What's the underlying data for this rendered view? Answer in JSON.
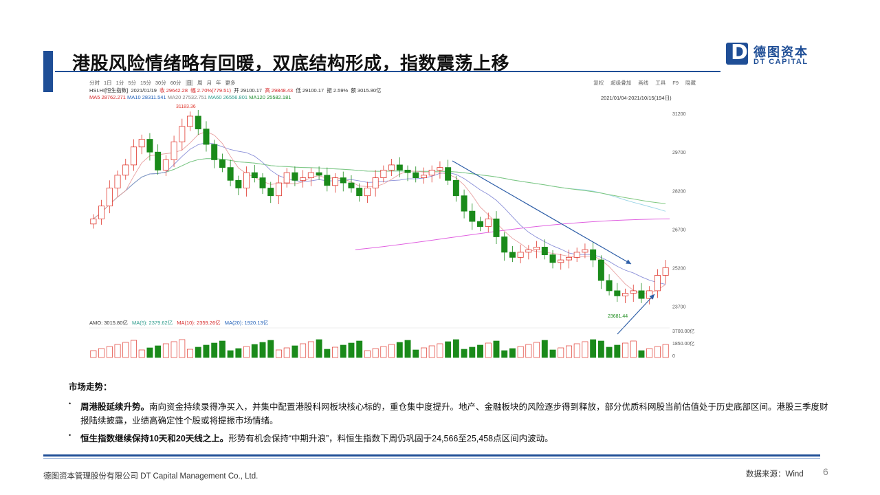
{
  "header": {
    "title": "港股风险情绪略有回暖，双底结构形成，指数震荡上移",
    "logo_cn": "德图资本",
    "logo_en": "DT CAPITAL",
    "logo_mark": "D"
  },
  "chart": {
    "toolbar_periods": [
      "分时",
      "1日",
      "1分",
      "5分",
      "15分",
      "30分",
      "60分",
      "日",
      "周",
      "月",
      "年",
      "更多"
    ],
    "selected_period": "日",
    "toolbar_right": [
      "复权",
      "超级叠加",
      "画线",
      "工具",
      "F9",
      "隐藏"
    ],
    "info_line1": {
      "code": "HSI.HI[恒生指数]",
      "date": "2021/01/19",
      "close": "收 29642.28",
      "change": "幅 2.70%(779.51)",
      "open": "开 29100.17",
      "high": "高 29848.43",
      "low": "低 29100.17",
      "amplitude": "振 2.59%",
      "volume": "额 3015.80亿"
    },
    "ma_labels": [
      {
        "label": "MA5",
        "value": "28762.271",
        "color": "#d62728"
      },
      {
        "label": "MA10",
        "value": "28311.541",
        "color": "#1f5fb8"
      },
      {
        "label": "MA20",
        "value": "27532.751",
        "color": "#7f7f7f"
      },
      {
        "label": "MA60",
        "value": "26556.801",
        "color": "#2a9a8a"
      },
      {
        "label": "MA120",
        "value": "25582.181",
        "color": "#1a8a2a"
      }
    ],
    "date_range": "2021/01/04-2021/10/15(194日)",
    "high_label": "31183.36",
    "low_label": "23681.44",
    "y_ticks": [
      "31200",
      "29700",
      "28200",
      "26700",
      "25200",
      "23700"
    ],
    "vol_ticks": [
      "3700.00亿",
      "1850.00亿",
      "0"
    ],
    "amo": {
      "amo": "AMO: 3015.80亿",
      "ma5": "MA(5): 2379.62亿",
      "ma10": "MA(10): 2359.26亿",
      "ma20": "MA(20): 1920.13亿"
    },
    "colors": {
      "up": "#e0392f",
      "down": "#1a8a1a",
      "arrow": "#2f5fa8",
      "ma250": "#e060e0",
      "ma120": "#7fc87f",
      "ma60": "#9fd6e8"
    }
  },
  "chart_data": {
    "type": "candlestick",
    "title": "HSI.HI[恒生指数]",
    "ylim": [
      23200,
      31500
    ],
    "highest": 31183.36,
    "lowest": 23681.44,
    "close_path_approx": [
      27100,
      27600,
      28300,
      28800,
      29200,
      29900,
      30200,
      29700,
      29000,
      29400,
      30100,
      30700,
      31100,
      30600,
      30000,
      29400,
      29100,
      28600,
      28300,
      28900,
      28700,
      28300,
      28000,
      28500,
      28900,
      28600,
      28700,
      28900,
      28800,
      28400,
      28700,
      28500,
      28300,
      28000,
      28300,
      28700,
      29000,
      29200,
      29000,
      28900,
      28700,
      28800,
      29000,
      29100,
      28600,
      28000,
      27400,
      27000,
      26800,
      27100,
      26400,
      25800,
      25600,
      25800,
      25900,
      26000,
      25700,
      25400,
      25500,
      25600,
      25800,
      25900,
      25500,
      24700,
      24300,
      24100,
      24200,
      24300,
      24000,
      24300,
      24900,
      25200
    ]
  },
  "notes": {
    "section_title": "市场走势：",
    "bullets": [
      {
        "bold": "周港股延续升势。",
        "text": "南向资金持续录得净买入，并集中配置港股科网板块核心标的，重仓集中度提升。地产、金融板块的风险逐步得到释放，部分优质科网股当前估值处于历史底部区间。港股三季度财报陆续披露，业绩高确定性个股或将提振市场情绪。"
      },
      {
        "bold": "恒生指数继续保持10天和20天线之上。",
        "text": "形势有机会保持“中期升浪”，料恒生指数下周仍巩固于24,566至25,458点区间内波动。"
      }
    ]
  },
  "footer": {
    "company": "德图资本管理股份有限公司  DT Capital Management  Co., Ltd.",
    "source": "数据来源：Wind",
    "page": "6"
  }
}
